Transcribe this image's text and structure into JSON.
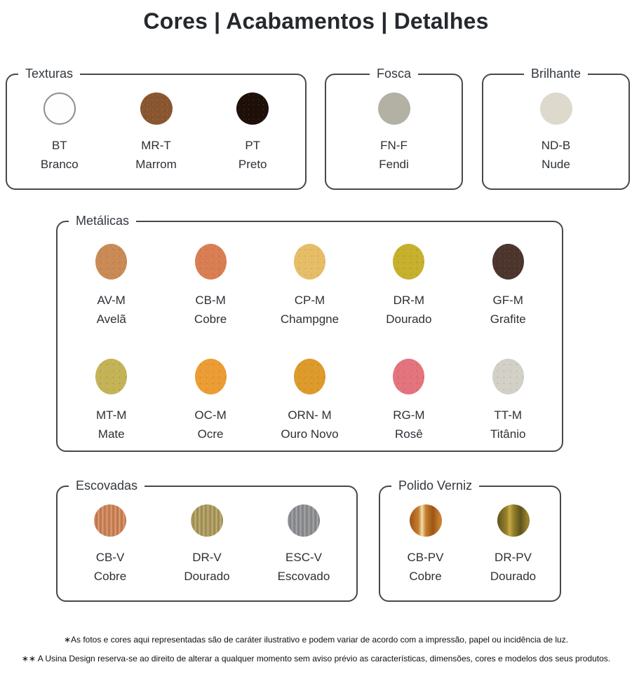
{
  "title": "Cores | Acabamentos | Detalhes",
  "sections": [
    {
      "label": "Texturas",
      "swatches": [
        {
          "code": "BT",
          "name": "Branco",
          "color": "#fefefe",
          "border": "#909090"
        },
        {
          "code": "MR-T",
          "name": "Marrom",
          "color": "#8a5630"
        },
        {
          "code": "PT",
          "name": "Preto",
          "color": "#1e0f09"
        }
      ]
    },
    {
      "label": "Fosca",
      "swatches": [
        {
          "code": "FN-F",
          "name": "Fendi",
          "color": "#b2b1a3"
        }
      ]
    },
    {
      "label": "Brilhante",
      "swatches": [
        {
          "code": "ND-B",
          "name": "Nude",
          "color": "#ded9cd"
        }
      ]
    },
    {
      "label": "Metálicas",
      "swatches": [
        {
          "code": "AV-M",
          "name": "Avelã",
          "color": "#c98a55"
        },
        {
          "code": "CB-M",
          "name": "Cobre",
          "color": "#d87e52"
        },
        {
          "code": "CP-M",
          "name": "Champgne",
          "color": "#e6bd67"
        },
        {
          "code": "DR-M",
          "name": "Dourado",
          "color": "#c6b02c"
        },
        {
          "code": "GF-M",
          "name": "Grafite",
          "color": "#4c352d"
        },
        {
          "code": "MT-M",
          "name": "Mate",
          "color": "#c4b257"
        },
        {
          "code": "OC-M",
          "name": "Ocre",
          "color": "#eb9c33"
        },
        {
          "code": "ORN- M",
          "name": "Ouro Novo",
          "color": "#dd9a2b"
        },
        {
          "code": "RG-M",
          "name": "Rosê",
          "color": "#e3737d"
        },
        {
          "code": "TT-M",
          "name": "Titânio",
          "color": "#d2d0c7"
        }
      ]
    },
    {
      "label": "Escovadas",
      "swatches": [
        {
          "code": "CB-V",
          "name": "Cobre",
          "color": "#cd8356"
        },
        {
          "code": "DR-V",
          "name": "Dourado",
          "color": "#ab995b"
        },
        {
          "code": "ESC-V",
          "name": "Escovado",
          "color": "#8d8f92"
        }
      ]
    },
    {
      "label": "Polido Verniz",
      "swatches": [
        {
          "code": "CB-PV",
          "name": "Cobre",
          "color": "#9c5517",
          "color2": "#c67f2e",
          "color3": "#f2dfae"
        },
        {
          "code": "DR-PV",
          "name": "Dourado",
          "color": "#5c531e",
          "color2": "#97802a",
          "color3": "#c8ab4a"
        }
      ]
    }
  ],
  "footnotes": [
    "∗As fotos e cores aqui representadas são de caráter ilustrativo e podem variar de acordo com a impressão, papel ou incidência de luz.",
    "∗∗ A Usina Design reserva-se ao direito de alterar a qualquer momento sem aviso prévio as características, dimensões, cores e modelos dos seus produtos."
  ]
}
